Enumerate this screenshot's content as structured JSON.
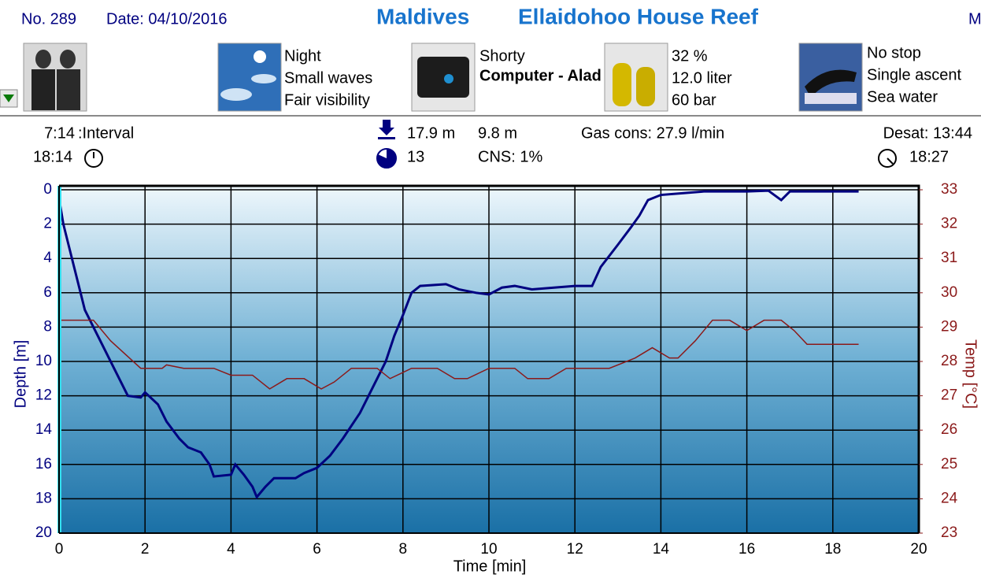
{
  "header": {
    "number": "No. 289",
    "date": "Date: 04/10/2016",
    "location": "Maldives",
    "site": "Ellaidohoo House Reef",
    "cut": "M"
  },
  "conditions": [
    "Night",
    "Small waves",
    "Fair visibility"
  ],
  "equipment": {
    "suit": "Shorty",
    "computer": "Computer - Aladin Prim"
  },
  "gas": [
    "32 %",
    "12.0 liter",
    "60 bar"
  ],
  "profile": [
    "No stop",
    "Single ascent",
    "Sea water"
  ],
  "stats": {
    "interval": "7:14",
    "interval_label": ":Interval",
    "entry_time": "18:14",
    "max_depth": "17.9 m",
    "avg_depth": "9.8 m",
    "duration": "13",
    "cns": "CNS:  1%",
    "gas_cons": "Gas cons: 27.9 l/min",
    "desat": "Desat: 13:44",
    "exit_time": "18:27"
  },
  "chart_data": {
    "type": "line",
    "xlabel": "Time [min]",
    "ylabel": "Depth [m]",
    "y2label": "Temp [°C]",
    "xlim": [
      0,
      20
    ],
    "xticks": [
      0,
      2,
      4,
      6,
      8,
      10,
      12,
      14,
      16,
      18,
      20
    ],
    "ylim": [
      0,
      20
    ],
    "yticks": [
      0,
      2,
      4,
      6,
      8,
      10,
      12,
      14,
      16,
      18,
      20
    ],
    "y_inverted": true,
    "y2lim": [
      23,
      33
    ],
    "y2ticks": [
      23,
      24,
      25,
      26,
      27,
      28,
      29,
      30,
      31,
      32,
      33
    ],
    "grid": true,
    "series": [
      {
        "color": "#000080",
        "x": [
          0,
          0.1,
          0.3,
          0.5,
          0.6,
          0.8,
          1,
          1.3,
          1.5,
          1.6,
          1.9,
          2,
          2.3,
          2.5,
          2.8,
          3,
          3.3,
          3.5,
          3.6,
          4,
          4.1,
          4.3,
          4.5,
          4.6,
          4.8,
          5,
          5.5,
          5.7,
          6,
          6.3,
          6.6,
          7,
          7.3,
          7.6,
          7.8,
          8,
          8.2,
          8.4,
          9,
          9.3,
          9.7,
          10,
          10.3,
          10.6,
          11,
          12,
          12.4,
          12.6,
          13,
          13.3,
          13.5,
          13.7,
          14,
          14.5,
          15,
          15.5,
          16,
          16.5,
          16.8,
          17,
          18,
          18.6
        ],
        "values": [
          0.5,
          2,
          4,
          6,
          7,
          8,
          9,
          10.5,
          11.5,
          12,
          12.1,
          11.8,
          12.5,
          13.5,
          14.5,
          15,
          15.3,
          16,
          16.7,
          16.6,
          16,
          16.6,
          17.3,
          17.9,
          17.3,
          16.8,
          16.8,
          16.5,
          16.2,
          15.5,
          14.5,
          13,
          11.5,
          10,
          8.5,
          7.3,
          6,
          5.6,
          5.5,
          5.8,
          6,
          6.1,
          5.7,
          5.6,
          5.8,
          5.6,
          5.6,
          4.5,
          3.2,
          2.2,
          1.5,
          0.6,
          0.3,
          0.2,
          0.1,
          0.1,
          0.1,
          0.05,
          0.6,
          0.1,
          0.1,
          0.1
        ]
      },
      {
        "color": "#8b1a1a",
        "axis": "y2",
        "x": [
          0,
          0.8,
          1.2,
          1.9,
          2.4,
          2.5,
          2.9,
          3.6,
          4,
          4.5,
          4.9,
          5.3,
          5.7,
          6.1,
          6.4,
          6.8,
          7.4,
          7.7,
          8.2,
          8.8,
          9.2,
          9.5,
          10,
          10.6,
          10.9,
          11.4,
          11.8,
          12.8,
          13.4,
          13.8,
          14.2,
          14.4,
          14.8,
          15.2,
          15.6,
          16,
          16.4,
          16.8,
          17.1,
          17.4,
          18,
          18.6
        ],
        "values": [
          29.2,
          29.2,
          28.6,
          27.8,
          27.8,
          27.9,
          27.8,
          27.8,
          27.6,
          27.6,
          27.2,
          27.5,
          27.5,
          27.2,
          27.4,
          27.8,
          27.8,
          27.5,
          27.8,
          27.8,
          27.5,
          27.5,
          27.8,
          27.8,
          27.5,
          27.5,
          27.8,
          27.8,
          28.1,
          28.4,
          28.1,
          28.1,
          28.6,
          29.2,
          29.2,
          28.9,
          29.2,
          29.2,
          28.9,
          28.5,
          28.5,
          28.5
        ]
      }
    ]
  }
}
